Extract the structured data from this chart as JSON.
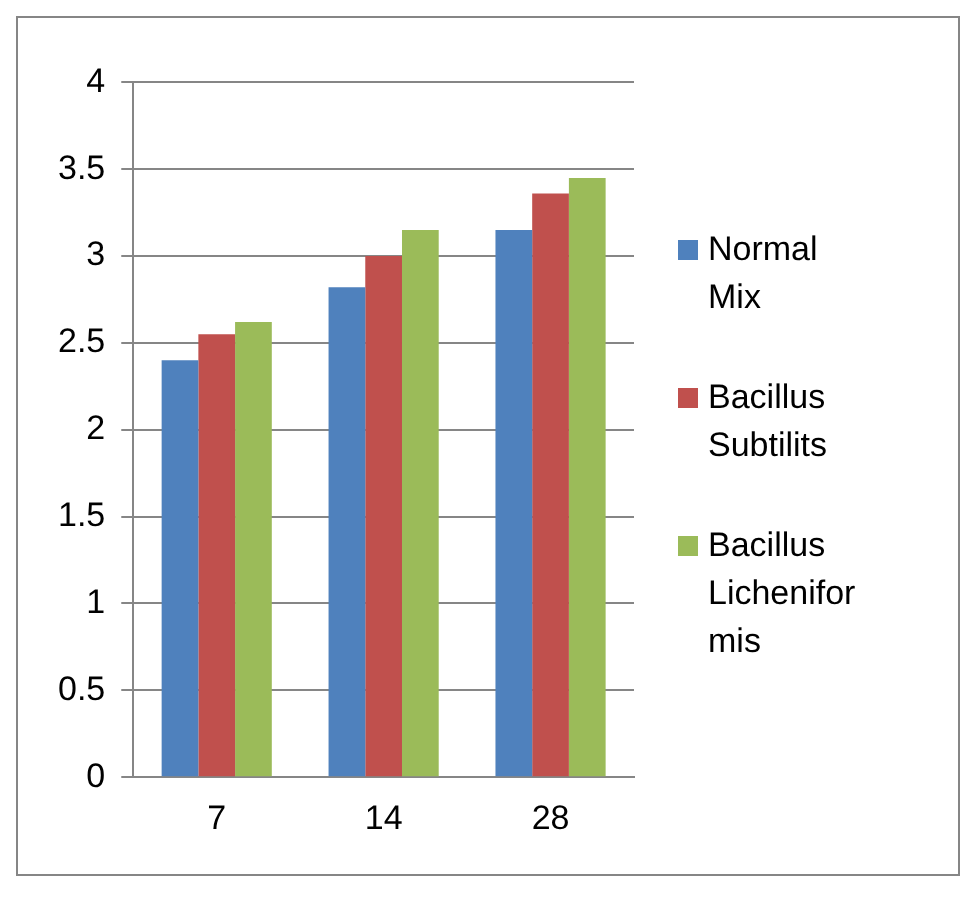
{
  "chart_data": {
    "type": "bar",
    "categories": [
      "7",
      "14",
      "28"
    ],
    "series": [
      {
        "name": "Normal Mix",
        "color": "#4f81bd",
        "values": [
          2.4,
          2.82,
          3.15
        ]
      },
      {
        "name": "Bacillus Subtilits",
        "color": "#c0504d",
        "values": [
          2.55,
          3.0,
          3.36
        ]
      },
      {
        "name": "Bacillus Licheniformis",
        "color": "#9bbb59",
        "values": [
          2.62,
          3.15,
          3.45
        ]
      }
    ],
    "ylim": [
      0,
      4
    ],
    "yticks": [
      0,
      0.5,
      1,
      1.5,
      2,
      2.5,
      3,
      3.5,
      4
    ],
    "grid": "y",
    "legend": "right"
  }
}
